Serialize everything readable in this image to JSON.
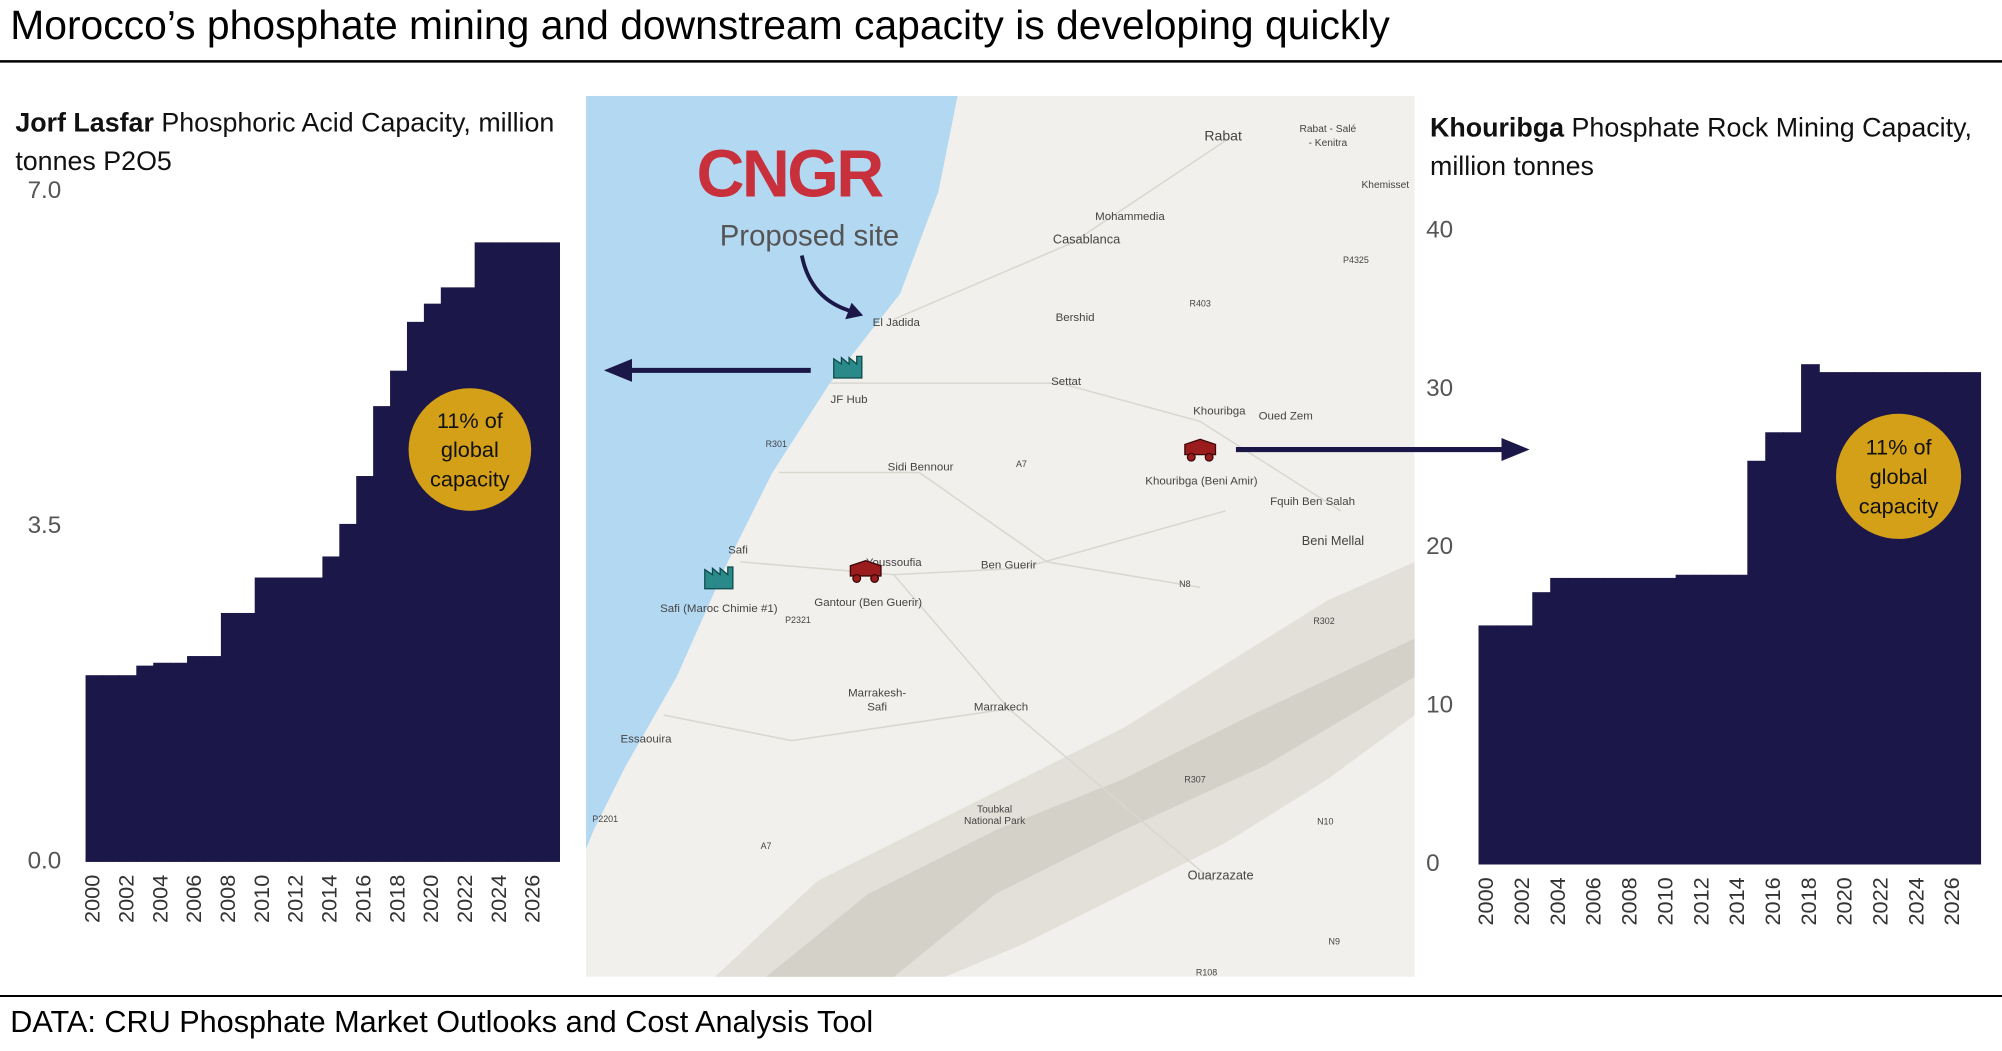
{
  "title": "Morocco’s phosphate mining and downstream capacity is developing quickly",
  "source": "DATA: CRU Phosphate Market Outlooks and Cost Analysis Tool",
  "chart_data": [
    {
      "type": "bar",
      "title_bold": "Jorf Lasfar",
      "title": "Phosphoric Acid Capacity, million tonnes P2O5",
      "annotation": "11% of global capacity",
      "annotation_color": "#d4a017",
      "color": "#1b1748",
      "x": [
        2000,
        2001,
        2002,
        2003,
        2004,
        2005,
        2006,
        2007,
        2008,
        2009,
        2010,
        2011,
        2012,
        2013,
        2014,
        2015,
        2016,
        2017,
        2018,
        2019,
        2020,
        2021,
        2022,
        2023,
        2024,
        2025,
        2026,
        2027
      ],
      "values": [
        1.95,
        1.95,
        1.95,
        2.05,
        2.08,
        2.08,
        2.15,
        2.15,
        2.6,
        2.6,
        2.97,
        2.97,
        2.97,
        2.97,
        3.19,
        3.53,
        4.03,
        4.76,
        5.13,
        5.64,
        5.83,
        6.0,
        6.0,
        6.47,
        6.47,
        6.47,
        6.47,
        6.47
      ],
      "xlim": [
        1999.5,
        2027.5
      ],
      "xticks": [
        2000,
        2002,
        2004,
        2006,
        2008,
        2010,
        2012,
        2014,
        2016,
        2018,
        2020,
        2022,
        2024,
        2026
      ],
      "ylim": [
        0,
        7
      ],
      "yticks": [
        {
          "value": 0,
          "label": "0.0"
        },
        {
          "value": 3.5,
          "label": "3.5"
        },
        {
          "value": 7,
          "label": "7.0"
        }
      ]
    },
    {
      "type": "bar",
      "title_bold": "Khouribga",
      "title": "Phosphate Rock Mining Capacity, million tonnes",
      "annotation": "11% of global capacity",
      "annotation_color": "#d4a017",
      "color": "#1b1748",
      "x": [
        2000,
        2001,
        2002,
        2003,
        2004,
        2005,
        2006,
        2007,
        2008,
        2009,
        2010,
        2011,
        2012,
        2013,
        2014,
        2015,
        2016,
        2017,
        2018,
        2019,
        2020,
        2021,
        2022,
        2023,
        2024,
        2025,
        2026,
        2027
      ],
      "values": [
        15.1,
        15.1,
        15.1,
        17.2,
        18.1,
        18.1,
        18.1,
        18.1,
        18.1,
        18.1,
        18.1,
        18.3,
        18.3,
        18.3,
        18.3,
        25.5,
        27.3,
        27.3,
        31.6,
        31.1,
        31.1,
        31.1,
        31.1,
        31.1,
        31.1,
        31.1,
        31.1,
        31.1
      ],
      "xlim": [
        1999.5,
        2027.5
      ],
      "xticks": [
        2000,
        2002,
        2004,
        2006,
        2008,
        2010,
        2012,
        2014,
        2016,
        2018,
        2020,
        2022,
        2024,
        2026
      ],
      "ylim": [
        0,
        40
      ],
      "yticks": [
        0,
        10,
        20,
        30,
        40
      ]
    }
  ],
  "map": {
    "logo": "CNGR",
    "caption": "Proposed site",
    "labels": [
      "Rabat",
      "Rabat - Salé",
      "- Kenitra",
      "Khemisset",
      "Mohammedia",
      "Casablanca",
      "P4325",
      "R403",
      "Bershid",
      "El Jadida",
      "JF Hub",
      "Settat",
      "Khouribga",
      "Oued Zem",
      "R301",
      "Sidi Bennour",
      "A7",
      "Khouribga (Beni Amir)",
      "Fquih Ben Salah",
      "Beni Mellal",
      "Safi",
      "Youssoufia",
      "Ben Guerir",
      "Gantour (Ben Guerir)",
      "Safi (Maroc Chimie #1)",
      "P2321",
      "N8",
      "R302",
      "Marrakesh-",
      "Safi",
      "Marrakech",
      "Essaouira",
      "R307",
      "Toubkal",
      "National Park",
      "P2201",
      "N10",
      "A7",
      "Ouarzazate",
      "N9",
      "R108"
    ]
  }
}
